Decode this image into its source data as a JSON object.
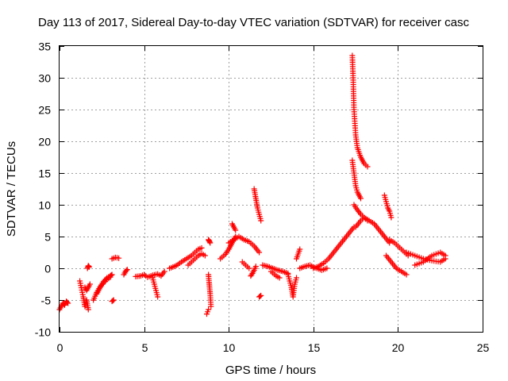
{
  "chart_data": {
    "type": "scatter",
    "title": "Day 113 of 2017, Sidereal Day-to-day VTEC variation (SDTVAR) for receiver casc",
    "xlabel": "GPS time / hours",
    "ylabel": "SDTVAR / TECUs",
    "xlim": [
      0,
      25
    ],
    "ylim": [
      -10,
      35
    ],
    "xticks": [
      0,
      5,
      10,
      15,
      20,
      25
    ],
    "yticks": [
      -10,
      -5,
      0,
      5,
      10,
      15,
      20,
      25,
      30,
      35
    ],
    "grid": true,
    "marker": "+",
    "colors": {
      "series": "#ff0000",
      "grid": "#a0a0a0",
      "axis": "#000000"
    },
    "series": [
      {
        "name": "SDTVAR",
        "segments": [
          {
            "x": [
              0.0,
              0.1,
              0.2,
              0.3,
              0.4,
              0.5
            ],
            "y": [
              -6.5,
              -6.0,
              -5.5,
              -5.8,
              -5.2,
              -5.5
            ]
          },
          {
            "x": [
              1.2,
              1.4,
              1.5,
              1.6,
              1.7
            ],
            "y": [
              -2.0,
              -4.5,
              -6.0,
              -5.0,
              -6.5
            ]
          },
          {
            "x": [
              1.5,
              1.6,
              1.7,
              1.8
            ],
            "y": [
              -3.0,
              -3.5,
              -3.0,
              -2.5
            ]
          },
          {
            "x": [
              1.65,
              1.7,
              1.75
            ],
            "y": [
              0.0,
              0.4,
              0.2
            ]
          },
          {
            "x": [
              2.0,
              2.2,
              2.4,
              2.6,
              2.8,
              3.0,
              3.1
            ],
            "y": [
              -5.0,
              -3.8,
              -2.9,
              -2.1,
              -1.5,
              -1.2,
              -1.0
            ]
          },
          {
            "x": [
              2.2,
              2.4,
              2.6,
              2.8,
              3.0
            ],
            "y": [
              -4.0,
              -3.0,
              -2.3,
              -1.8,
              -1.4
            ]
          },
          {
            "x": [
              3.1,
              3.3,
              3.5
            ],
            "y": [
              1.5,
              1.7,
              1.6
            ]
          },
          {
            "x": [
              3.1,
              3.2
            ],
            "y": [
              -5.2,
              -5.0
            ]
          },
          {
            "x": [
              3.8,
              3.9,
              4.0
            ],
            "y": [
              -1.0,
              -0.5,
              -0.2
            ]
          },
          {
            "x": [
              4.5,
              4.8,
              5.0,
              5.2,
              5.5,
              5.8,
              6.0,
              6.2
            ],
            "y": [
              -1.3,
              -1.2,
              -1.0,
              -1.4,
              -1.1,
              -0.9,
              -1.2,
              -0.5
            ]
          },
          {
            "x": [
              5.5,
              5.6,
              5.7,
              5.8
            ],
            "y": [
              -1.5,
              -2.5,
              -3.5,
              -4.5
            ]
          },
          {
            "x": [
              6.5,
              6.8,
              7.0,
              7.2,
              7.5,
              7.8,
              8.0,
              8.2,
              8.4
            ],
            "y": [
              0.0,
              0.3,
              0.6,
              1.0,
              1.5,
              2.0,
              2.5,
              3.0,
              3.2
            ]
          },
          {
            "x": [
              7.6,
              7.8,
              8.0,
              8.2,
              8.4,
              8.6
            ],
            "y": [
              0.5,
              1.0,
              1.5,
              2.0,
              2.3,
              2.0
            ]
          },
          {
            "x": [
              8.8,
              8.85,
              8.9
            ],
            "y": [
              4.5,
              4.3,
              4.0
            ]
          },
          {
            "x": [
              8.8,
              8.85,
              8.9,
              8.95
            ],
            "y": [
              -1.0,
              -2.5,
              -4.0,
              -6.0
            ]
          },
          {
            "x": [
              8.7,
              8.8
            ],
            "y": [
              -7.2,
              -6.5
            ]
          },
          {
            "x": [
              9.5,
              9.8,
              10.0,
              10.2,
              10.4
            ],
            "y": [
              1.5,
              2.2,
              3.0,
              4.0,
              5.0
            ]
          },
          {
            "x": [
              10.2,
              10.3,
              10.4
            ],
            "y": [
              7.0,
              6.5,
              6.0
            ]
          },
          {
            "x": [
              10.0,
              10.3,
              10.6,
              10.9,
              11.2,
              11.5,
              11.8
            ],
            "y": [
              4.0,
              4.5,
              5.0,
              4.5,
              4.2,
              3.5,
              2.5
            ]
          },
          {
            "x": [
              10.8,
              11.0,
              11.2
            ],
            "y": [
              1.0,
              0.5,
              0.0
            ]
          },
          {
            "x": [
              11.5,
              11.6,
              11.7,
              11.8,
              11.9
            ],
            "y": [
              12.5,
              11.0,
              9.5,
              8.5,
              7.5
            ]
          },
          {
            "x": [
              11.3,
              11.4,
              11.5,
              11.6
            ],
            "y": [
              -1.2,
              -0.8,
              -0.3,
              0.3
            ]
          },
          {
            "x": [
              11.8,
              11.9
            ],
            "y": [
              -4.5,
              -4.3
            ]
          },
          {
            "x": [
              12.0,
              12.3,
              12.6,
              12.9,
              13.2,
              13.5
            ],
            "y": [
              0.5,
              0.3,
              0.0,
              -0.3,
              -0.5,
              -0.8
            ]
          },
          {
            "x": [
              12.5,
              12.8,
              13.0
            ],
            "y": [
              -0.5,
              -1.2,
              -1.5
            ]
          },
          {
            "x": [
              13.5,
              13.6,
              13.7,
              13.8,
              13.9,
              14.0
            ],
            "y": [
              -1.0,
              -2.0,
              -3.0,
              -4.5,
              -2.5,
              -1.5
            ]
          },
          {
            "x": [
              14.0,
              14.2
            ],
            "y": [
              1.5,
              3.0
            ]
          },
          {
            "x": [
              14.2,
              14.5,
              14.8,
              15.0,
              15.2,
              15.5,
              15.8
            ],
            "y": [
              0.0,
              0.3,
              0.5,
              0.2,
              0.0,
              -0.3,
              0.0
            ]
          },
          {
            "x": [
              15.0,
              15.3,
              15.6,
              15.9,
              16.2,
              16.5,
              16.8,
              17.1,
              17.4
            ],
            "y": [
              0.0,
              0.3,
              0.8,
              1.5,
              2.5,
              3.5,
              4.5,
              5.5,
              6.5
            ]
          },
          {
            "x": [
              17.3,
              17.35,
              17.4,
              17.5,
              17.6,
              17.8,
              18.0,
              18.2
            ],
            "y": [
              33.5,
              30.0,
              25.0,
              21.0,
              19.0,
              17.5,
              16.5,
              16.0
            ]
          },
          {
            "x": [
              17.3,
              17.4,
              17.5,
              17.6,
              17.8
            ],
            "y": [
              17.0,
              15.0,
              13.0,
              12.0,
              11.0
            ]
          },
          {
            "x": [
              17.4,
              17.6,
              17.8,
              18.0,
              18.2
            ],
            "y": [
              10.0,
              9.2,
              8.5,
              8.0,
              7.5
            ]
          },
          {
            "x": [
              17.5,
              17.8,
              18.0,
              18.3,
              18.6,
              18.9,
              19.2,
              19.5
            ],
            "y": [
              6.5,
              7.5,
              8.0,
              7.5,
              7.0,
              6.0,
              5.0,
              4.0
            ]
          },
          {
            "x": [
              19.2,
              19.3,
              19.4,
              19.5,
              19.6
            ],
            "y": [
              11.5,
              10.5,
              9.5,
              9.0,
              8.0
            ]
          },
          {
            "x": [
              19.3,
              19.6,
              19.9,
              20.2,
              20.5
            ],
            "y": [
              2.0,
              1.0,
              0.0,
              -0.5,
              -1.0
            ]
          },
          {
            "x": [
              19.5,
              19.8,
              20.0,
              20.2,
              20.4,
              20.6
            ],
            "y": [
              4.5,
              4.0,
              3.5,
              3.0,
              2.5,
              2.0
            ]
          },
          {
            "x": [
              20.5,
              21.0,
              21.5,
              22.0,
              22.5,
              22.8
            ],
            "y": [
              2.5,
              2.0,
              1.5,
              1.2,
              1.0,
              1.5
            ]
          },
          {
            "x": [
              21.0,
              21.5,
              22.0,
              22.5,
              22.8
            ],
            "y": [
              0.5,
              1.0,
              2.0,
              2.5,
              2.0
            ]
          }
        ]
      }
    ]
  }
}
